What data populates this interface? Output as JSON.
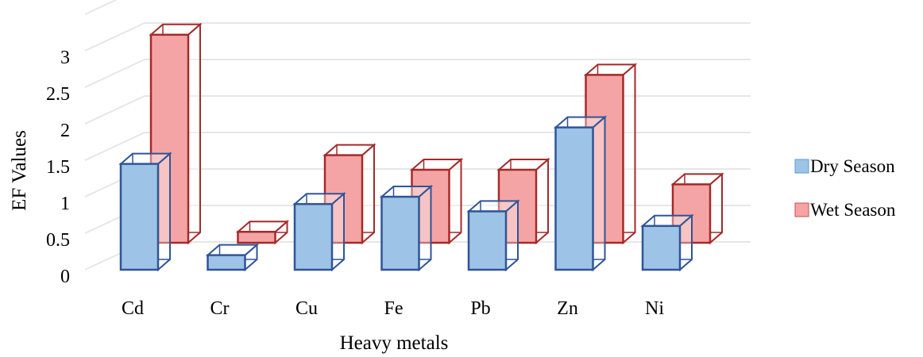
{
  "chart_data": {
    "type": "bar",
    "title": "",
    "xlabel": "Heavy metals",
    "ylabel": "EF Values",
    "categories": [
      "Cd",
      "Cr",
      "Cu",
      "Fe",
      "Pb",
      "Zn",
      "Ni"
    ],
    "series": [
      {
        "name": "Dry Season",
        "values": [
          1.45,
          0.2,
          0.9,
          1.0,
          0.8,
          1.95,
          0.6
        ],
        "color": "#9dc3e6",
        "edge": "#2f5597"
      },
      {
        "name": "Wet Season",
        "values": [
          2.85,
          0.15,
          1.2,
          1.0,
          1.0,
          2.3,
          0.8
        ],
        "color": "#f4a4a4",
        "edge": "#a52a2a"
      }
    ],
    "yticks": [
      "0",
      "0.5",
      "1",
      "1.5",
      "2",
      "2.5",
      "3"
    ],
    "ylim": [
      0,
      3.5
    ],
    "grid": true,
    "legend": "right"
  }
}
